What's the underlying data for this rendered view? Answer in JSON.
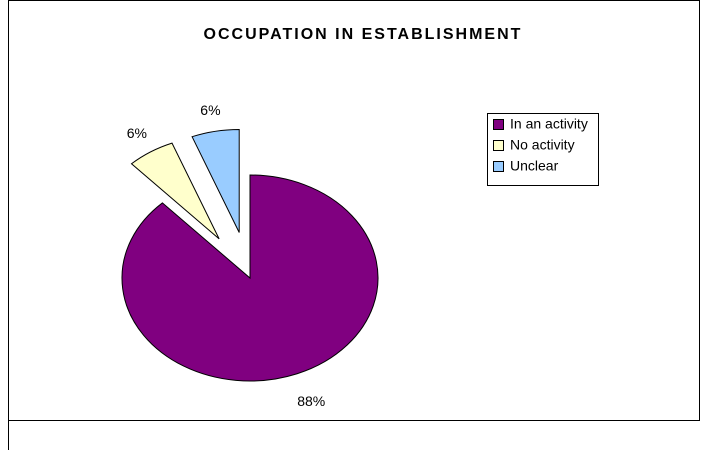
{
  "chart_data": {
    "type": "pie",
    "title": "OCCUPATION IN ESTABLISHMENT",
    "categories": [
      "In an activity",
      "No activity",
      "Unclear"
    ],
    "values": [
      88,
      6,
      6
    ],
    "value_labels": [
      "88%",
      "6%",
      "6%"
    ],
    "colors": [
      "#800080",
      "#FFFFCC",
      "#99CCFF"
    ],
    "legend": "right"
  }
}
